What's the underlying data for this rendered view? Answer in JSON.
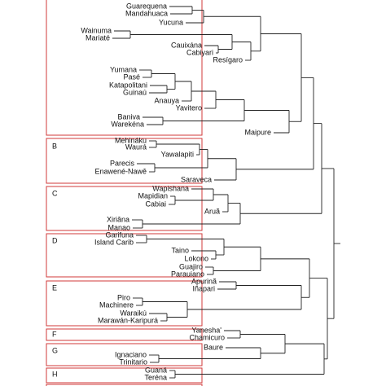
{
  "labels": [
    "Guarequena",
    "Mandahuaca",
    "Yucuna",
    "Wainuma",
    "Mariaté",
    "Cauixána",
    "Cabiyari",
    "Resígaro",
    "Yumana",
    "Pasé",
    "Katapolitani",
    "Guinaú",
    "Anauya",
    "Yavitero",
    "Baniva",
    "Warekéna",
    "Maipure",
    "Mehináku",
    "Waurá",
    "Yawalapiti",
    "Parecis",
    "Enawené-Nawê",
    "Saraveca",
    "Wapishana",
    "Mapidian",
    "Cabiai",
    "Aruã",
    "Xiriâna",
    "Manao",
    "Garifuna",
    "Island Carib",
    "Taino",
    "Lokono",
    "Guajiro",
    "Parauiano",
    "Apurinã",
    "Iñapari",
    "Piro",
    "Machinere",
    "Waraikú",
    "Marawán-Karipurá",
    "Yanesha'",
    "Chamicuro",
    "Baure",
    "Ignaciano",
    "Trinitario",
    "Guaná",
    "Teréna"
  ],
  "groups": [
    "B",
    "C",
    "D",
    "E",
    "F",
    "G",
    "H"
  ]
}
